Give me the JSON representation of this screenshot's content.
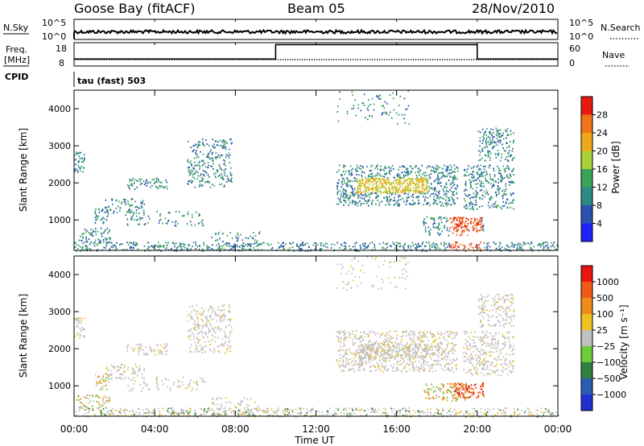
{
  "header": {
    "station": "Goose Bay (fitACF)",
    "beam": "Beam 05",
    "date": "28/Nov/2010"
  },
  "chart_data": {
    "type": "heatmap",
    "x": {
      "label": "Time UT",
      "range": [
        0,
        24
      ],
      "tick_values": [
        0,
        4,
        8,
        12,
        16,
        20,
        24
      ],
      "tick_labels": [
        "00:00",
        "04:00",
        "08:00",
        "12:00",
        "16:00",
        "20:00",
        "00:00"
      ]
    },
    "noise_panel": {
      "left_label": "N.Sky",
      "right_label": "N.Search",
      "left_ticks": [
        "10^5",
        "10^0"
      ],
      "right_ticks": [
        "10^5",
        "10^0"
      ]
    },
    "freq_panel": {
      "left_label": "Freq.",
      "left_unit": "[MHz]",
      "left_ticks": [
        "18",
        "8"
      ],
      "right_label": "Nave",
      "right_ticks": [
        "60",
        "0"
      ],
      "nave_low": 18,
      "nave_high": 55,
      "nave_high_interval": [
        10,
        20
      ]
    },
    "cpid": {
      "label": "CPID",
      "text": "tau (fast) 503"
    },
    "panels": [
      {
        "id": "power",
        "ylabel": "Slant Range [km]",
        "yticks": [
          1000,
          2000,
          3000,
          4000
        ],
        "ylim": [
          180,
          4500
        ],
        "colorbar": {
          "label": "Power [dB]",
          "ticks": [
            "4",
            "8",
            "12",
            "16",
            "20",
            "24",
            "28"
          ],
          "colors": [
            "#2020ff",
            "#2a53b0",
            "#2e8a82",
            "#3aa55a",
            "#a7d335",
            "#f0a81a",
            "#f07318",
            "#e81a10"
          ]
        }
      },
      {
        "id": "velocity",
        "ylabel": "Slant Range [km]",
        "yticks": [
          1000,
          2000,
          3000,
          4000
        ],
        "ylim": [
          180,
          4500
        ],
        "colorbar": {
          "label": "Velocity [m s⁻¹]",
          "ticks": [
            "1000",
            "500",
            "100",
            "25",
            "−25",
            "−100",
            "−500",
            "−1000"
          ],
          "colors": [
            "#2030d0",
            "#2c5cb0",
            "#2e8040",
            "#6ccc3a",
            "#c0c0c0",
            "#f0c020",
            "#f08a18",
            "#f05a15",
            "#e81510"
          ]
        }
      }
    ],
    "scatter_regions": [
      {
        "t": [
          0.0,
          0.5
        ],
        "r": [
          2300,
          2850
        ],
        "p": 0.7,
        "vel": "gray"
      },
      {
        "t": [
          0.1,
          1.8
        ],
        "r": [
          380,
          800
        ],
        "p": 0.5,
        "vel": "mix"
      },
      {
        "t": [
          1.0,
          1.7
        ],
        "r": [
          900,
          1350
        ],
        "p": 0.55,
        "vel": "orange"
      },
      {
        "t": [
          1.5,
          3.5
        ],
        "r": [
          1200,
          1600
        ],
        "p": 0.45,
        "vel": "gray"
      },
      {
        "t": [
          2.5,
          6.5
        ],
        "r": [
          850,
          1250
        ],
        "p": 0.25,
        "vel": "gray"
      },
      {
        "t": [
          2.6,
          4.6
        ],
        "r": [
          1850,
          2150
        ],
        "p": 0.55,
        "vel": "gray"
      },
      {
        "t": [
          5.6,
          7.8
        ],
        "r": [
          1900,
          3200
        ],
        "p": 0.45,
        "vel": "gray"
      },
      {
        "t": [
          6.8,
          9.2
        ],
        "r": [
          200,
          700
        ],
        "p": 0.3,
        "vel": "gray"
      },
      {
        "t": [
          13.0,
          19.0
        ],
        "r": [
          1400,
          2500
        ],
        "p": 0.6,
        "vel": "gray"
      },
      {
        "t": [
          14.0,
          17.5
        ],
        "r": [
          1750,
          2150
        ],
        "p": 0.9,
        "vel": "gray"
      },
      {
        "t": [
          17.3,
          19.5
        ],
        "r": [
          600,
          1100
        ],
        "p": 0.5,
        "vel": "orange"
      },
      {
        "t": [
          18.8,
          20.3
        ],
        "r": [
          700,
          1100
        ],
        "p": 0.85,
        "vel": "red"
      },
      {
        "t": [
          19.3,
          21.8
        ],
        "r": [
          1300,
          2500
        ],
        "p": 0.5,
        "vel": "gray"
      },
      {
        "t": [
          20.0,
          21.8
        ],
        "r": [
          2600,
          3500
        ],
        "p": 0.5,
        "vel": "gray"
      },
      {
        "t": [
          13.0,
          16.6
        ],
        "r": [
          3600,
          4500
        ],
        "p": 0.12,
        "vel": "gray"
      },
      {
        "t": [
          0.0,
          24.0
        ],
        "r": [
          180,
          420
        ],
        "p": 0.55,
        "vel": "ground"
      }
    ]
  }
}
